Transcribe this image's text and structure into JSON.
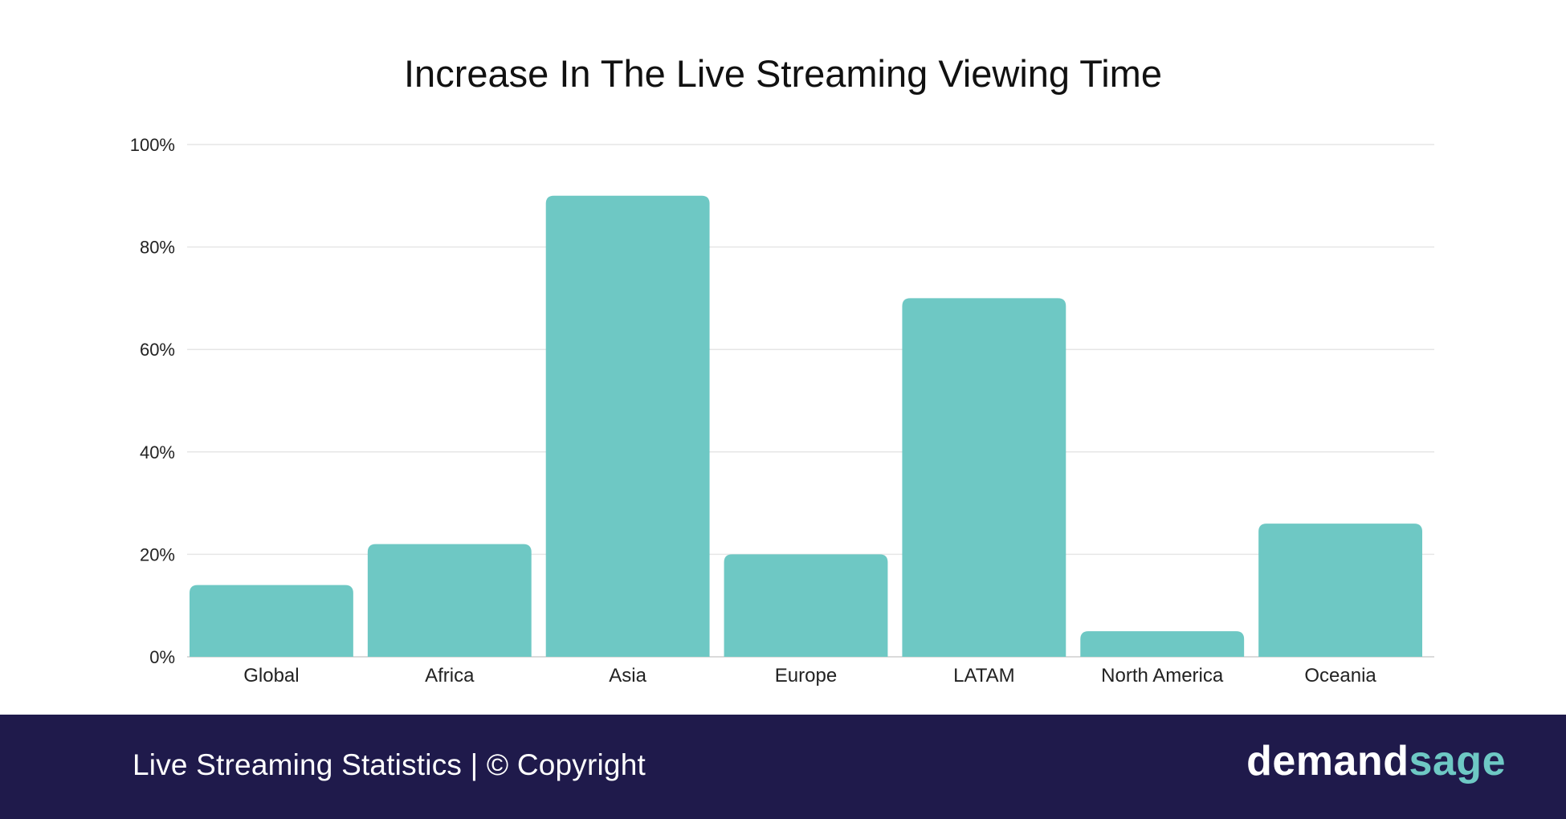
{
  "chart_data": {
    "type": "bar",
    "title": "Increase In The Live Streaming Viewing Time",
    "categories": [
      "Global",
      "Africa",
      "Asia",
      "Europe",
      "LATAM",
      "North America",
      "Oceania"
    ],
    "values": [
      14,
      22,
      90,
      20,
      70,
      5,
      26
    ],
    "ylim": [
      0,
      100
    ],
    "yticks": [
      0,
      20,
      40,
      60,
      80,
      100
    ],
    "ytick_labels": [
      "0%",
      "20%",
      "40%",
      "60%",
      "80%",
      "100%"
    ],
    "xlabel": "",
    "ylabel": "",
    "grid": true,
    "bar_color": "#6ec8c4"
  },
  "footer": {
    "text": "Live Streaming Statistics | © Copyright",
    "brand_part1": "demand",
    "brand_part2": "sage",
    "background": "#1f1a4b"
  }
}
